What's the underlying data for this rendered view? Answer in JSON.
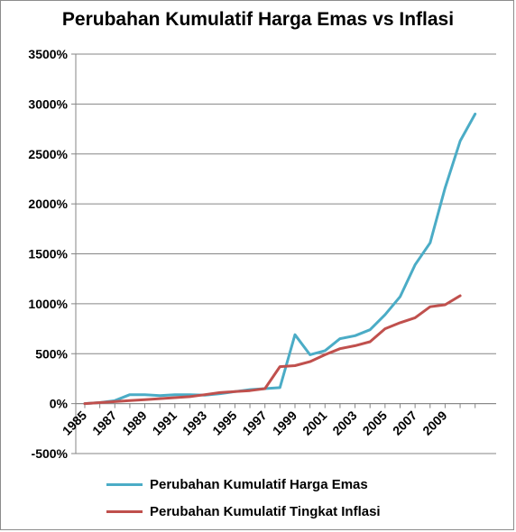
{
  "chart_data": {
    "type": "line",
    "title": "Perubahan Kumulatif Harga Emas vs Inflasi",
    "x": [
      1985,
      1986,
      1987,
      1988,
      1989,
      1990,
      1991,
      1992,
      1993,
      1994,
      1995,
      1996,
      1997,
      1998,
      1999,
      2000,
      2001,
      2002,
      2003,
      2004,
      2005,
      2006,
      2007,
      2008,
      2009,
      2010,
      2011
    ],
    "x_tick_labels": [
      "1985",
      "1987",
      "1989",
      "1991",
      "1993",
      "1995",
      "1997",
      "1999",
      "2001",
      "2003",
      "2005",
      "2007",
      "2009"
    ],
    "y_tick_labels": [
      "-500%",
      "0%",
      "500%",
      "1000%",
      "1500%",
      "2000%",
      "2500%",
      "3000%",
      "3500%"
    ],
    "ylim": [
      -500,
      3500
    ],
    "y_unit": "%",
    "grid": "horizontal",
    "legend_position": "bottom",
    "series": [
      {
        "name": "Perubahan Kumulatif Harga Emas",
        "color": "#4bacc6",
        "values": [
          0,
          10,
          30,
          90,
          90,
          80,
          90,
          90,
          85,
          100,
          120,
          140,
          150,
          160,
          690,
          490,
          530,
          650,
          680,
          740,
          890,
          1070,
          1390,
          1610,
          2160,
          2630,
          2900
        ]
      },
      {
        "name": "Perubahan Kumulatif Tingkat Inflasi",
        "color": "#c0504d",
        "values": [
          0,
          10,
          20,
          30,
          40,
          50,
          60,
          70,
          90,
          110,
          120,
          130,
          150,
          370,
          380,
          420,
          490,
          550,
          580,
          620,
          750,
          810,
          860,
          970,
          990,
          1080,
          null
        ]
      }
    ]
  }
}
